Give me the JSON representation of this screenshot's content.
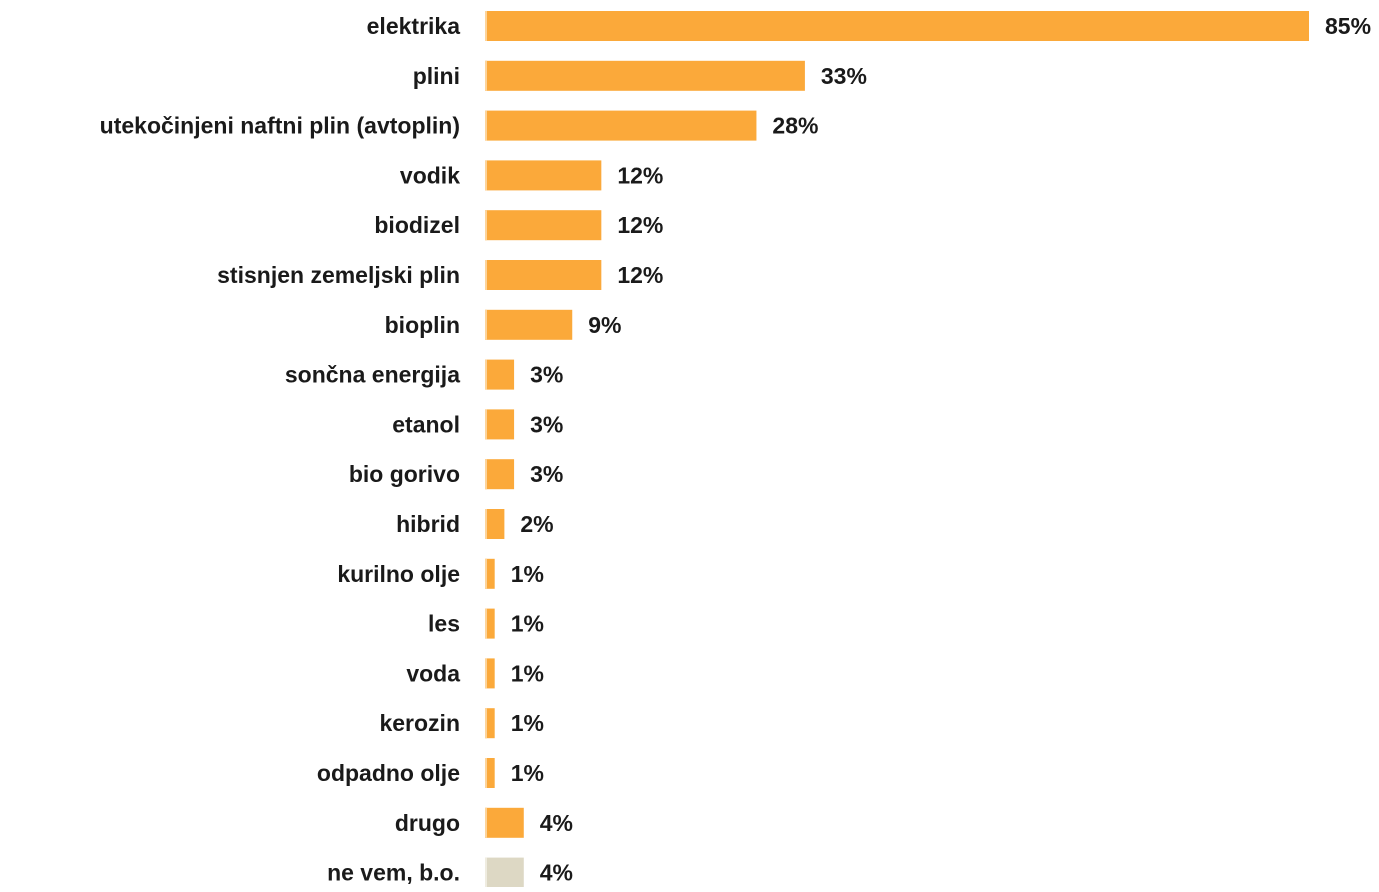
{
  "chart_data": {
    "type": "bar",
    "orientation": "horizontal",
    "categories": [
      "elektrika",
      "plini",
      "utekočinjeni naftni plin (avtoplin)",
      "vodik",
      "biodizel",
      "stisnjen zemeljski plin",
      "bioplin",
      "sončna energija",
      "etanol",
      "bio gorivo",
      "hibrid",
      "kurilno olje",
      "les",
      "voda",
      "kerozin",
      "odpadno olje",
      "drugo",
      "ne vem, b.o."
    ],
    "values": [
      85,
      33,
      28,
      12,
      12,
      12,
      9,
      3,
      3,
      3,
      2,
      1,
      1,
      1,
      1,
      1,
      4,
      4
    ],
    "value_labels": [
      "85%",
      "33%",
      "28%",
      "12%",
      "12%",
      "12%",
      "9%",
      "3%",
      "3%",
      "3%",
      "2%",
      "1%",
      "1%",
      "1%",
      "1%",
      "1%",
      "4%",
      "4%"
    ],
    "unit": "%",
    "xlim": [
      0,
      85
    ],
    "grid": false,
    "colors": {
      "bar": "#FBA93A",
      "bar_highlight": "#FDD49A",
      "bar_no_answer": "#DDD8C4",
      "bar_no_answer_highlight": "#EFECE0",
      "text": "#1a1a1a"
    },
    "no_answer_index": 17
  }
}
